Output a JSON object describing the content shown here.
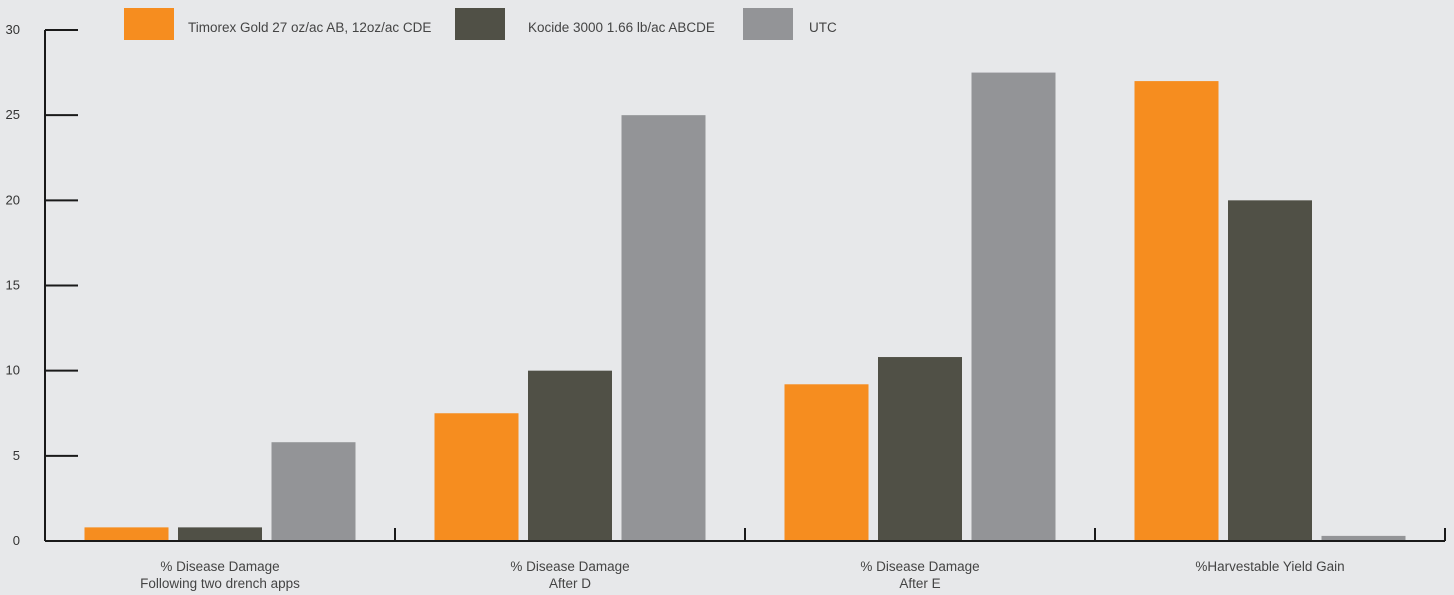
{
  "chart_data": {
    "type": "bar",
    "categories": [
      [
        "% Disease Damage",
        "Following two drench apps"
      ],
      [
        "% Disease Damage",
        "After D"
      ],
      [
        "% Disease Damage",
        "After E"
      ],
      [
        "%Harvestable Yield Gain"
      ]
    ],
    "series": [
      {
        "name": "Timorex Gold 27 oz/ac AB, 12oz/ac CDE",
        "color": "#f68d1f",
        "values": [
          0.8,
          7.5,
          9.2,
          27.0
        ]
      },
      {
        "name": "Kocide 3000 1.66 lb/ac ABCDE",
        "color": "#505046",
        "values": [
          0.8,
          10.0,
          10.8,
          20.0
        ]
      },
      {
        "name": "UTC",
        "color": "#939497",
        "values": [
          5.8,
          25.0,
          27.5,
          0.3
        ]
      }
    ],
    "yticks": [
      0,
      5,
      10,
      15,
      20,
      25,
      30
    ],
    "ylim": [
      0,
      30
    ],
    "grid": false,
    "legend": "top"
  }
}
